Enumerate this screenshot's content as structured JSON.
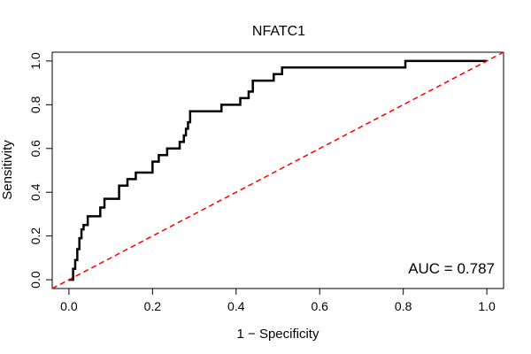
{
  "chart_data": {
    "type": "line",
    "title": "NFATC1",
    "xlabel": "1 − Specificity",
    "ylabel": "Sensitivity",
    "xlim": [
      -0.04,
      1.04
    ],
    "ylim": [
      -0.04,
      1.04
    ],
    "xticks": [
      0.0,
      0.2,
      0.4,
      0.6,
      0.8,
      1.0
    ],
    "yticks": [
      0.0,
      0.2,
      0.4,
      0.6,
      0.8,
      1.0
    ],
    "xtick_labels": [
      "0.0",
      "0.2",
      "0.4",
      "0.6",
      "0.8",
      "1.0"
    ],
    "ytick_labels": [
      "0.0",
      "0.2",
      "0.4",
      "0.6",
      "0.8",
      "1.0"
    ],
    "grid": false,
    "annotation": "AUC = 0.787",
    "series": [
      {
        "style": "step",
        "color": "#000000",
        "x": [
          0.0,
          0.01,
          0.01,
          0.015,
          0.015,
          0.02,
          0.02,
          0.025,
          0.025,
          0.03,
          0.03,
          0.035,
          0.035,
          0.045,
          0.045,
          0.075,
          0.075,
          0.085,
          0.085,
          0.12,
          0.12,
          0.14,
          0.14,
          0.16,
          0.16,
          0.2,
          0.2,
          0.215,
          0.215,
          0.235,
          0.235,
          0.265,
          0.265,
          0.275,
          0.275,
          0.28,
          0.28,
          0.285,
          0.285,
          0.29,
          0.29,
          0.365,
          0.365,
          0.41,
          0.41,
          0.43,
          0.43,
          0.44,
          0.44,
          0.49,
          0.49,
          0.51,
          0.51,
          0.52,
          0.52,
          0.805,
          0.805,
          1.0
        ],
        "y": [
          0.0,
          0.0,
          0.05,
          0.05,
          0.09,
          0.09,
          0.14,
          0.14,
          0.19,
          0.19,
          0.23,
          0.23,
          0.25,
          0.25,
          0.29,
          0.29,
          0.33,
          0.33,
          0.37,
          0.37,
          0.43,
          0.43,
          0.46,
          0.46,
          0.49,
          0.49,
          0.54,
          0.54,
          0.57,
          0.57,
          0.6,
          0.6,
          0.63,
          0.63,
          0.66,
          0.66,
          0.69,
          0.69,
          0.72,
          0.72,
          0.77,
          0.77,
          0.8,
          0.8,
          0.83,
          0.83,
          0.86,
          0.86,
          0.91,
          0.91,
          0.94,
          0.94,
          0.97,
          0.97,
          0.97,
          0.97,
          1.0,
          1.0
        ]
      },
      {
        "style": "dashed",
        "color": "#ff0000",
        "x": [
          -0.04,
          1.04
        ],
        "y": [
          -0.04,
          1.04
        ]
      }
    ]
  }
}
